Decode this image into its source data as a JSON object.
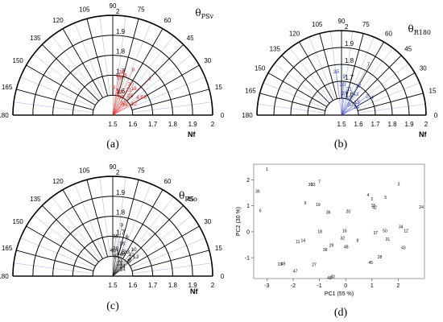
{
  "chart_data": [
    {
      "panel": "(a)",
      "type": "scatter",
      "coordinate_system": "polar",
      "title_main": "θ",
      "title_sub": "PSv",
      "radial_label": "Nf",
      "radial_ticks": [
        "1.5",
        "1.6",
        "1.7",
        "1.8",
        "1.9",
        "2"
      ],
      "angular_ticks": [
        "180",
        "165",
        "150",
        "135",
        "120",
        "105",
        "90",
        "75",
        "60",
        "45",
        "30",
        "15",
        "0"
      ],
      "rlim": [
        1.5,
        2.0
      ],
      "thetalim": [
        0,
        180
      ],
      "color": "#d62424",
      "points": [
        {
          "label": "9",
          "theta": 66,
          "r": 1.75
        },
        {
          "label": "7",
          "theta": 44,
          "r": 1.76
        },
        {
          "label": "11",
          "theta": 82,
          "r": 1.7
        },
        {
          "label": "35",
          "theta": 78,
          "r": 1.72
        },
        {
          "label": "6",
          "theta": 72,
          "r": 1.71
        },
        {
          "label": "19",
          "theta": 80,
          "r": 1.69
        },
        {
          "label": "20",
          "theta": 60,
          "r": 1.68
        },
        {
          "label": "18",
          "theta": 52,
          "r": 1.67
        },
        {
          "label": "21",
          "theta": 58,
          "r": 1.65
        },
        {
          "label": "13",
          "theta": 30,
          "r": 1.68
        },
        {
          "label": "43",
          "theta": 34,
          "r": 1.66
        },
        {
          "label": "25",
          "theta": 48,
          "r": 1.63
        },
        {
          "label": "30",
          "theta": 75,
          "r": 1.62
        },
        {
          "label": "33",
          "theta": 66,
          "r": 1.6
        },
        {
          "label": "12",
          "theta": 28,
          "r": 1.62
        },
        {
          "label": "14",
          "theta": 40,
          "r": 1.58
        },
        {
          "label": "8",
          "theta": 88,
          "r": 1.64
        },
        {
          "label": "32",
          "theta": 50,
          "r": 1.58
        }
      ]
    },
    {
      "panel": "(b)",
      "type": "scatter",
      "coordinate_system": "polar",
      "title_main": "θ",
      "title_sub": "R180",
      "radial_label": "Nf",
      "radial_ticks": [
        "1.5",
        "1.6",
        "1.7",
        "1.8",
        "1.9",
        "2"
      ],
      "angular_ticks": [
        "180",
        "165",
        "150",
        "135",
        "120",
        "105",
        "90",
        "75",
        "60",
        "45",
        "30",
        "15",
        "0"
      ],
      "rlim": [
        1.5,
        2.0
      ],
      "thetalim": [
        0,
        180
      ],
      "color": "#2a3db5",
      "points": [
        {
          "label": "7",
          "theta": 62,
          "r": 1.84
        },
        {
          "label": "35",
          "theta": 97,
          "r": 1.76
        },
        {
          "label": "9",
          "theta": 86,
          "r": 1.73
        },
        {
          "label": "12",
          "theta": 60,
          "r": 1.7
        },
        {
          "label": "2",
          "theta": 36,
          "r": 1.69
        },
        {
          "label": "4",
          "theta": 30,
          "r": 1.71
        },
        {
          "label": "20",
          "theta": 88,
          "r": 1.68
        },
        {
          "label": "21",
          "theta": 74,
          "r": 1.66
        },
        {
          "label": "43",
          "theta": 56,
          "r": 1.65
        },
        {
          "label": "15",
          "theta": 40,
          "r": 1.62
        },
        {
          "label": "27",
          "theta": 82,
          "r": 1.63
        },
        {
          "label": "33",
          "theta": 68,
          "r": 1.61
        },
        {
          "label": "14",
          "theta": 28,
          "r": 1.6
        },
        {
          "label": "30",
          "theta": 50,
          "r": 1.58
        }
      ]
    },
    {
      "panel": "(c)",
      "type": "scatter",
      "coordinate_system": "polar",
      "title_main": "θ",
      "title_sub": "PSo",
      "radial_label": "Nf",
      "radial_ticks": [
        "1.5",
        "1.6",
        "1.7",
        "1.8",
        "1.9",
        "2"
      ],
      "angular_ticks": [
        "180",
        "165",
        "150",
        "135",
        "120",
        "105",
        "90",
        "75",
        "60",
        "45",
        "30",
        "15",
        "0"
      ],
      "rlim": [
        1.5,
        2.0
      ],
      "thetalim": [
        0,
        180
      ],
      "color": "#111111",
      "points": [
        {
          "label": "9",
          "theta": 80,
          "r": 1.76
        },
        {
          "label": "6",
          "theta": 70,
          "r": 1.71
        },
        {
          "label": "35",
          "theta": 86,
          "r": 1.7
        },
        {
          "label": "16",
          "theta": 74,
          "r": 1.67
        },
        {
          "label": "10",
          "theta": 52,
          "r": 1.67
        },
        {
          "label": "42",
          "theta": 48,
          "r": 1.64
        },
        {
          "label": "13",
          "theta": 40,
          "r": 1.65
        },
        {
          "label": "33",
          "theta": 60,
          "r": 1.64
        },
        {
          "label": "3",
          "theta": 44,
          "r": 1.62
        },
        {
          "label": "5",
          "theta": 42,
          "r": 1.61
        },
        {
          "label": "28",
          "theta": 84,
          "r": 1.64
        },
        {
          "label": "46",
          "theta": 66,
          "r": 1.62
        },
        {
          "label": "40",
          "theta": 90,
          "r": 1.63
        },
        {
          "label": "34",
          "theta": 80,
          "r": 1.6
        },
        {
          "label": "11",
          "theta": 66,
          "r": 1.59
        },
        {
          "label": "7",
          "theta": 56,
          "r": 1.58
        },
        {
          "label": "24",
          "theta": 46,
          "r": 1.57
        },
        {
          "label": "14",
          "theta": 36,
          "r": 1.56
        },
        {
          "label": "23",
          "theta": 62,
          "r": 1.57
        }
      ]
    },
    {
      "panel": "(d)",
      "type": "scatter",
      "xlabel": "PC1 (55 %)",
      "ylabel": "PC2 (30 %)",
      "xlim": [
        -3.5,
        3.0
      ],
      "ylim": [
        -1.8,
        2.6
      ],
      "xticks": [
        "-3",
        "-2",
        "-1",
        "0",
        "1",
        "2"
      ],
      "yticks": [
        "-1",
        "0",
        "1",
        "2"
      ],
      "color": "#222222",
      "points": [
        {
          "label": "1",
          "x": -3.0,
          "y": 2.42
        },
        {
          "label": "35",
          "x": -3.35,
          "y": 1.56
        },
        {
          "label": "6",
          "x": -3.25,
          "y": 0.82
        },
        {
          "label": "7",
          "x": -1.0,
          "y": 1.94
        },
        {
          "label": "39",
          "x": -1.34,
          "y": 1.82
        },
        {
          "label": "33",
          "x": -1.24,
          "y": 1.82
        },
        {
          "label": "9",
          "x": -1.54,
          "y": 1.12
        },
        {
          "label": "19",
          "x": -1.05,
          "y": 1.05
        },
        {
          "label": "36",
          "x": -0.66,
          "y": 0.75
        },
        {
          "label": "20",
          "x": 0.1,
          "y": 0.78
        },
        {
          "label": "4",
          "x": 0.85,
          "y": 1.42
        },
        {
          "label": "2",
          "x": 1.0,
          "y": 1.26
        },
        {
          "label": "5",
          "x": 1.52,
          "y": 1.33
        },
        {
          "label": "3",
          "x": 2.02,
          "y": 1.84
        },
        {
          "label": "24",
          "x": 2.88,
          "y": 0.96
        },
        {
          "label": "18",
          "x": -0.98,
          "y": 0.02
        },
        {
          "label": "11",
          "x": -1.82,
          "y": -0.38
        },
        {
          "label": "14",
          "x": -1.62,
          "y": -0.33
        },
        {
          "label": "16",
          "x": -0.04,
          "y": 0.05
        },
        {
          "label": "32",
          "x": -0.12,
          "y": -0.24
        },
        {
          "label": "29",
          "x": -0.54,
          "y": -0.52
        },
        {
          "label": "38",
          "x": -0.78,
          "y": -0.68
        },
        {
          "label": "48",
          "x": 0.02,
          "y": -0.58
        },
        {
          "label": "8",
          "x": 0.45,
          "y": -0.33
        },
        {
          "label": "37",
          "x": 1.14,
          "y": -0.03
        },
        {
          "label": "50",
          "x": 1.5,
          "y": 0.05
        },
        {
          "label": "34",
          "x": 2.1,
          "y": 0.2
        },
        {
          "label": "12",
          "x": 2.3,
          "y": 0.04
        },
        {
          "label": "31",
          "x": 1.6,
          "y": -0.28
        },
        {
          "label": "43",
          "x": 2.2,
          "y": -0.6
        },
        {
          "label": "28",
          "x": 1.3,
          "y": -0.96
        },
        {
          "label": "45",
          "x": 0.95,
          "y": -1.18
        },
        {
          "label": "23",
          "x": -2.5,
          "y": -1.24
        },
        {
          "label": "49",
          "x": -2.38,
          "y": -1.22
        },
        {
          "label": "47",
          "x": -1.92,
          "y": -1.5
        },
        {
          "label": "27",
          "x": -1.2,
          "y": -1.26
        },
        {
          "label": "30",
          "x": -0.5,
          "y": -1.72
        },
        {
          "label": "40",
          "x": -0.62,
          "y": -1.77
        },
        {
          "label": "15",
          "x": 1.05,
          "y": 1.02
        },
        {
          "label": "42",
          "x": 1.1,
          "y": 0.95
        }
      ]
    }
  ],
  "panel_labels": [
    "(a)",
    "(b)",
    "(c)",
    "(d)"
  ]
}
